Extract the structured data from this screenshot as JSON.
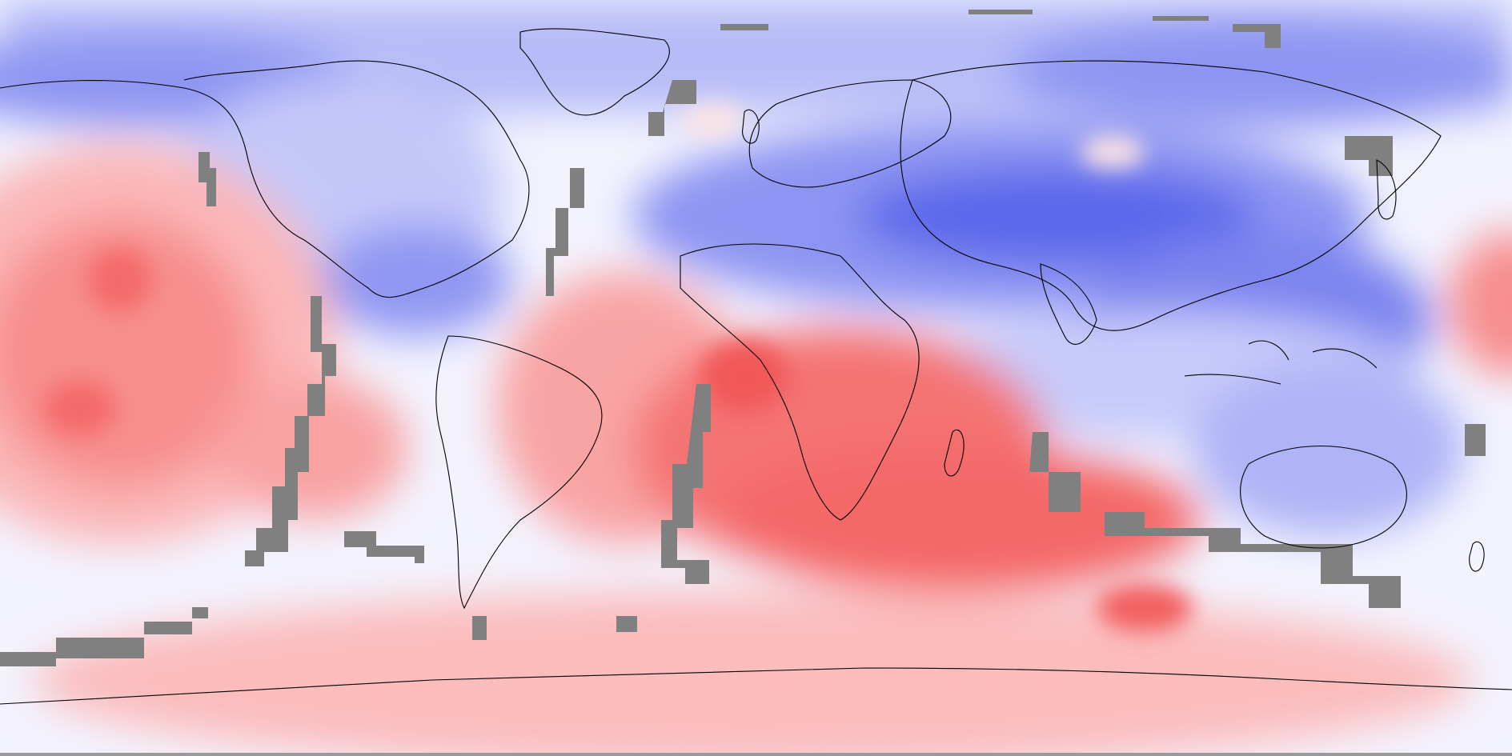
{
  "map": {
    "projection": "equirectangular",
    "extent": {
      "lon": [
        -180,
        180
      ],
      "lat": [
        -90,
        90
      ]
    },
    "variable_style": "filled-contour anomaly field",
    "palette": {
      "strong_negative": "#4f5ce6",
      "negative": "#7f88f0",
      "weak_negative": "#b6bcf7",
      "near_zero_neg": "#e4e6fd",
      "near_zero_pos": "#fde9e9",
      "weak_positive": "#fbc2c2",
      "positive": "#f99292",
      "strong_positive": "#f46363",
      "masked": "#808080",
      "coastline": "#000000"
    },
    "layers": [
      "anomaly-field",
      "masked-cells",
      "coastlines"
    ]
  }
}
